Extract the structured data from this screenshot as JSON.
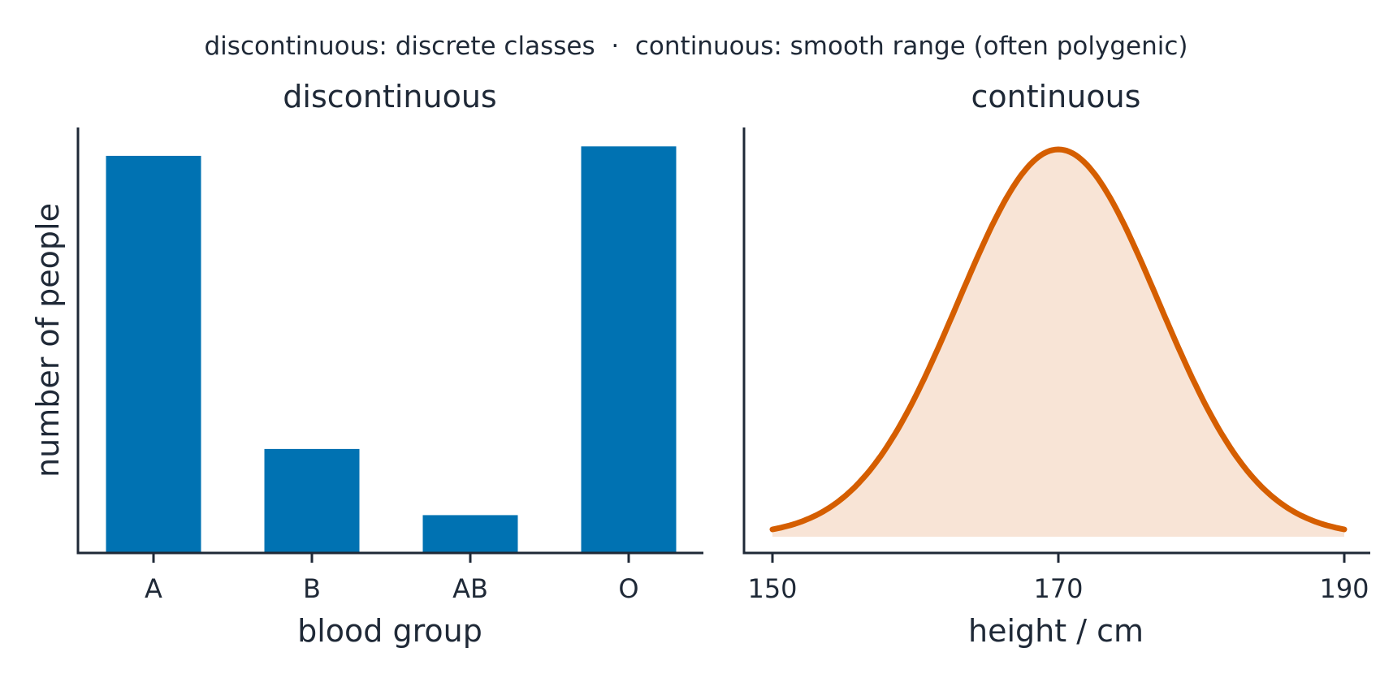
{
  "suptitle": "discontinuous: discrete classes  ·  continuous: smooth range (often polygenic)",
  "colors": {
    "bar": "#0072b2",
    "curve": "#d55e00",
    "fill": "#f8e4d6",
    "axis": "#1f2937"
  },
  "chart_data": [
    {
      "type": "bar",
      "title": "discontinuous",
      "xlabel": "blood group",
      "ylabel": "number of people",
      "categories": [
        "A",
        "B",
        "AB",
        "O"
      ],
      "values": [
        42,
        11,
        4,
        43
      ],
      "ylim": [
        0,
        45
      ]
    },
    {
      "type": "area",
      "title": "continuous",
      "xlabel": "height / cm",
      "ylabel": "",
      "distribution": "normal",
      "mean": 170,
      "sd": 7,
      "xlim": [
        148,
        193
      ],
      "xticks": [
        150,
        170,
        190
      ],
      "x_range": [
        150,
        190
      ],
      "legend": "none"
    }
  ]
}
